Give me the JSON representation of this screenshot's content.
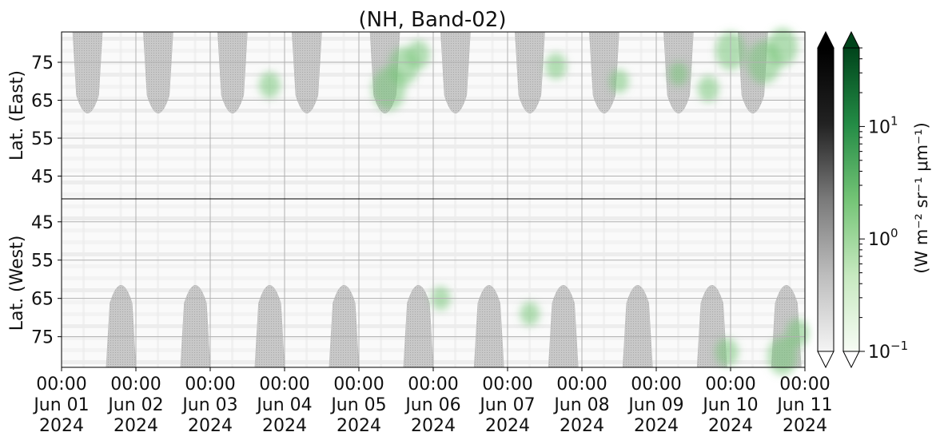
{
  "chart_data": {
    "type": "heatmap",
    "title": "(NH, Band-02)",
    "x_ticks": [
      {
        "time": "00:00",
        "date": "Jun 01",
        "year": "2024"
      },
      {
        "time": "00:00",
        "date": "Jun 02",
        "year": "2024"
      },
      {
        "time": "00:00",
        "date": "Jun 03",
        "year": "2024"
      },
      {
        "time": "00:00",
        "date": "Jun 04",
        "year": "2024"
      },
      {
        "time": "00:00",
        "date": "Jun 05",
        "year": "2024"
      },
      {
        "time": "00:00",
        "date": "Jun 06",
        "year": "2024"
      },
      {
        "time": "00:00",
        "date": "Jun 07",
        "year": "2024"
      },
      {
        "time": "00:00",
        "date": "Jun 08",
        "year": "2024"
      },
      {
        "time": "00:00",
        "date": "Jun 09",
        "year": "2024"
      },
      {
        "time": "00:00",
        "date": "Jun 10",
        "year": "2024"
      },
      {
        "time": "00:00",
        "date": "Jun 11",
        "year": "2024"
      }
    ],
    "panels": [
      {
        "id": "east",
        "ylabel": "Lat. (East)",
        "y_ticks": [
          "45",
          "55",
          "65",
          "75"
        ],
        "ylim": [
          39,
          83
        ],
        "y_inverted": false,
        "night_gaps": [
          {
            "center_day": 0.35,
            "lat_from": 39,
            "lat_to": 60
          },
          {
            "center_day": 1.3,
            "lat_from": 39,
            "lat_to": 60
          },
          {
            "center_day": 2.3,
            "lat_from": 39,
            "lat_to": 60
          },
          {
            "center_day": 3.3,
            "lat_from": 39,
            "lat_to": 60
          },
          {
            "center_day": 4.35,
            "lat_from": 39,
            "lat_to": 60
          },
          {
            "center_day": 5.3,
            "lat_from": 39,
            "lat_to": 60
          },
          {
            "center_day": 6.3,
            "lat_from": 39,
            "lat_to": 60
          },
          {
            "center_day": 7.3,
            "lat_from": 39,
            "lat_to": 60
          },
          {
            "center_day": 8.3,
            "lat_from": 39,
            "lat_to": 60
          },
          {
            "center_day": 9.3,
            "lat_from": 39,
            "lat_to": 60
          }
        ]
      },
      {
        "id": "west",
        "ylabel": "Lat. (West)",
        "y_ticks": [
          "75",
          "65",
          "55",
          "45"
        ],
        "ylim": [
          83,
          39
        ],
        "y_inverted": true,
        "night_gaps": [
          {
            "center_day": 0.8,
            "lat_from": 39,
            "lat_to": 60
          },
          {
            "center_day": 1.8,
            "lat_from": 39,
            "lat_to": 60
          },
          {
            "center_day": 2.8,
            "lat_from": 39,
            "lat_to": 60
          },
          {
            "center_day": 3.8,
            "lat_from": 39,
            "lat_to": 60
          },
          {
            "center_day": 4.8,
            "lat_from": 39,
            "lat_to": 60
          },
          {
            "center_day": 5.75,
            "lat_from": 39,
            "lat_to": 60
          },
          {
            "center_day": 6.75,
            "lat_from": 39,
            "lat_to": 60
          },
          {
            "center_day": 7.75,
            "lat_from": 39,
            "lat_to": 60
          },
          {
            "center_day": 8.75,
            "lat_from": 39,
            "lat_to": 60
          },
          {
            "center_day": 9.75,
            "lat_from": 39,
            "lat_to": 60
          }
        ]
      }
    ],
    "green_blobs": [
      {
        "panel": "east",
        "day": 4.4,
        "lat": 68,
        "intensity": 5
      },
      {
        "panel": "east",
        "day": 4.6,
        "lat": 74,
        "intensity": 4
      },
      {
        "panel": "east",
        "day": 4.8,
        "lat": 77,
        "intensity": 2
      },
      {
        "panel": "east",
        "day": 2.8,
        "lat": 69,
        "intensity": 1.5
      },
      {
        "panel": "east",
        "day": 6.65,
        "lat": 74,
        "intensity": 1.5
      },
      {
        "panel": "east",
        "day": 7.5,
        "lat": 70,
        "intensity": 1
      },
      {
        "panel": "east",
        "day": 8.3,
        "lat": 72,
        "intensity": 1
      },
      {
        "panel": "east",
        "day": 8.7,
        "lat": 68,
        "intensity": 1.5
      },
      {
        "panel": "east",
        "day": 9.0,
        "lat": 78,
        "intensity": 4
      },
      {
        "panel": "east",
        "day": 9.45,
        "lat": 75,
        "intensity": 5
      },
      {
        "panel": "east",
        "day": 9.7,
        "lat": 79,
        "intensity": 4
      },
      {
        "panel": "west",
        "day": 8.95,
        "lat": 79,
        "intensity": 2
      },
      {
        "panel": "west",
        "day": 9.7,
        "lat": 80,
        "intensity": 4
      },
      {
        "panel": "west",
        "day": 9.9,
        "lat": 74,
        "intensity": 2
      },
      {
        "panel": "west",
        "day": 5.1,
        "lat": 65,
        "intensity": 1
      },
      {
        "panel": "west",
        "day": 6.3,
        "lat": 69,
        "intensity": 1
      }
    ],
    "colorbars": [
      {
        "name": "gray",
        "colors": [
          "#f4f4f4",
          "#bdbdbd",
          "#7a7a7a",
          "#222222",
          "#000000"
        ],
        "log_min": 0.1,
        "log_max": 50,
        "extend": "both"
      },
      {
        "name": "green",
        "colors": [
          "#f7fcf5",
          "#c7e9c0",
          "#74c476",
          "#238b45",
          "#00441b"
        ],
        "log_min": 0.1,
        "log_max": 50,
        "extend": "both"
      }
    ],
    "colorbar_ticks": [
      {
        "base": "10",
        "exp": "1",
        "value": 10
      },
      {
        "base": "10",
        "exp": "0",
        "value": 1
      },
      {
        "base": "10",
        "exp": "−1",
        "value": 0.1
      }
    ],
    "colorbar_label": "(W m⁻² sr⁻¹ μm⁻¹)",
    "colorbar_scale": "log",
    "grid": true
  }
}
